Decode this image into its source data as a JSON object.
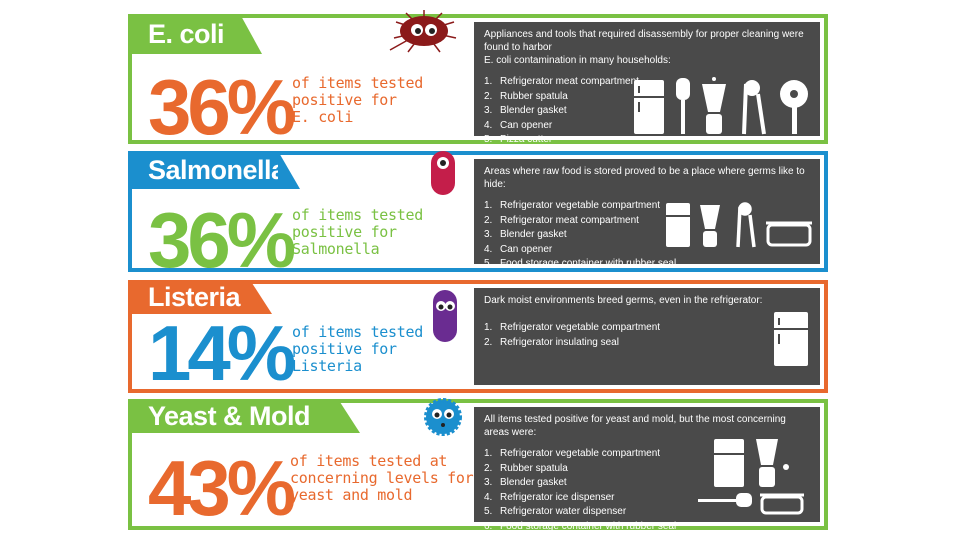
{
  "colors": {
    "green": "#7ac143",
    "blue": "#1b8fce",
    "orange": "#e8692e",
    "dark_panel": "#4a4a4a"
  },
  "panels": [
    {
      "title": "E. coli",
      "percent": "36%",
      "caption_lines": [
        "of items tested",
        "positive for",
        "E. coli"
      ],
      "intro_lines": [
        "Appliances and tools that required disassembly for proper cleaning were found to harbor",
        "E. coli contamination in many households:"
      ],
      "items": [
        "Refrigerator meat compartment",
        "Rubber spatula",
        "Blender gasket",
        "Can opener",
        "Pizza cutter"
      ],
      "icons": [
        "refrigerator-icon",
        "spatula-icon",
        "blender-icon",
        "can-opener-icon",
        "pizza-cutter-icon"
      ]
    },
    {
      "title": "Salmonella",
      "percent": "36%",
      "caption_lines": [
        "of items tested",
        "positive for",
        "Salmonella"
      ],
      "intro_lines": [
        "Areas where raw food is stored proved to be a place where germs like to hide:"
      ],
      "items": [
        "Refrigerator vegetable compartment",
        "Refrigerator meat compartment",
        "Blender gasket",
        "Can opener",
        "Food storage container with rubber seal"
      ],
      "icons": [
        "refrigerator-icon",
        "blender-icon",
        "can-opener-icon",
        "food-container-icon"
      ]
    },
    {
      "title": "Listeria",
      "percent": "14%",
      "caption_lines": [
        "of items tested",
        "positive for",
        "Listeria"
      ],
      "intro_lines": [
        "Dark moist environments breed germs, even in the refrigerator:"
      ],
      "items": [
        "Refrigerator vegetable compartment",
        "Refrigerator insulating seal"
      ],
      "icons": [
        "refrigerator-icon"
      ]
    },
    {
      "title": "Yeast & Mold",
      "percent": "43%",
      "caption_lines": [
        "of items tested at",
        "concerning levels for",
        "yeast and mold"
      ],
      "intro_lines": [
        "All items tested positive for yeast and mold, but the most concerning areas were:"
      ],
      "items": [
        "Refrigerator vegetable compartment",
        "Rubber spatula",
        "Blender gasket",
        "Refrigerator ice dispenser",
        "Refrigerator water dispenser",
        "Food storage container with rubber seal"
      ],
      "icons": [
        "refrigerator-icon",
        "blender-icon",
        "spatula-icon",
        "food-container-icon"
      ]
    }
  ]
}
